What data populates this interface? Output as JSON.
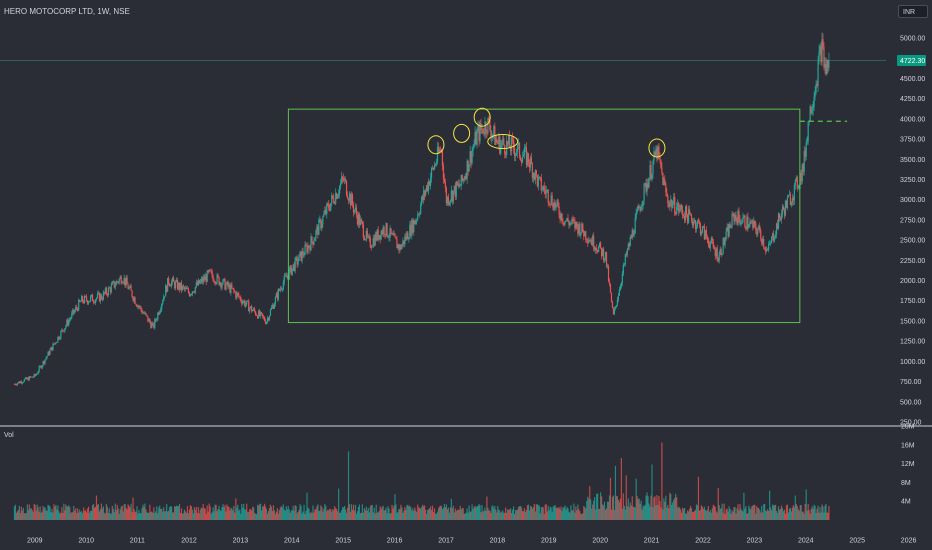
{
  "header": {
    "symbol_title": "HERO MOTOCORP LTD, 1W, NSE",
    "currency": "INR"
  },
  "volume_pane": {
    "label": "Vol"
  },
  "colors": {
    "bg": "#2a2c36",
    "up": "#26a69a",
    "down": "#ef5350",
    "box": "#5cc24e",
    "marker": "#f5e63c",
    "text": "#d1d4dc",
    "price_tag": "#089981"
  },
  "chart_data": [
    {
      "type": "candlestick",
      "title": "HERO MOTOCORP LTD, 1W, NSE",
      "x_ticks": [
        "2009",
        "2010",
        "2011",
        "2012",
        "2013",
        "2014",
        "2015",
        "2016",
        "2017",
        "2018",
        "2019",
        "2020",
        "2021",
        "2022",
        "2023",
        "2024",
        "2025",
        "2026"
      ],
      "y_ticks": [
        "250.00",
        "500.00",
        "750.00",
        "1000.00",
        "1250.00",
        "1500.00",
        "1750.00",
        "2000.00",
        "2250.00",
        "2500.00",
        "2750.00",
        "3000.00",
        "3250.00",
        "3500.00",
        "3750.00",
        "4000.00",
        "4250.00",
        "4500.00",
        "5000.00"
      ],
      "ylim": [
        250,
        5150
      ],
      "last_price": "4722.30",
      "price_path": [
        [
          2008.6,
          720
        ],
        [
          2009.0,
          820
        ],
        [
          2009.5,
          1350
        ],
        [
          2009.9,
          1750
        ],
        [
          2010.3,
          1800
        ],
        [
          2010.7,
          2050
        ],
        [
          2011.0,
          1700
        ],
        [
          2011.3,
          1420
        ],
        [
          2011.6,
          2000
        ],
        [
          2012.0,
          1850
        ],
        [
          2012.4,
          2080
        ],
        [
          2012.8,
          1900
        ],
        [
          2013.2,
          1650
        ],
        [
          2013.5,
          1500
        ],
        [
          2013.8,
          1950
        ],
        [
          2014.0,
          2150
        ],
        [
          2014.4,
          2500
        ],
        [
          2014.7,
          2900
        ],
        [
          2015.0,
          3250
        ],
        [
          2015.2,
          2900
        ],
        [
          2015.5,
          2450
        ],
        [
          2015.8,
          2650
        ],
        [
          2016.1,
          2400
        ],
        [
          2016.4,
          2750
        ],
        [
          2016.7,
          3300
        ],
        [
          2016.9,
          3650
        ],
        [
          2017.0,
          3000
        ],
        [
          2017.3,
          3200
        ],
        [
          2017.6,
          3800
        ],
        [
          2017.8,
          3950
        ],
        [
          2018.0,
          3700
        ],
        [
          2018.3,
          3650
        ],
        [
          2018.6,
          3500
        ],
        [
          2018.8,
          3200
        ],
        [
          2019.0,
          3050
        ],
        [
          2019.3,
          2750
        ],
        [
          2019.6,
          2650
        ],
        [
          2019.9,
          2450
        ],
        [
          2020.1,
          2300
        ],
        [
          2020.25,
          1550
        ],
        [
          2020.5,
          2300
        ],
        [
          2020.8,
          3000
        ],
        [
          2021.0,
          3400
        ],
        [
          2021.1,
          3600
        ],
        [
          2021.3,
          3000
        ],
        [
          2021.6,
          2850
        ],
        [
          2021.9,
          2700
        ],
        [
          2022.1,
          2500
        ],
        [
          2022.3,
          2300
        ],
        [
          2022.6,
          2800
        ],
        [
          2022.9,
          2700
        ],
        [
          2023.1,
          2600
        ],
        [
          2023.25,
          2350
        ],
        [
          2023.5,
          2800
        ],
        [
          2023.8,
          3150
        ],
        [
          2023.95,
          3400
        ],
        [
          2024.05,
          4000
        ],
        [
          2024.2,
          4500
        ],
        [
          2024.3,
          4900
        ],
        [
          2024.38,
          4600
        ],
        [
          2024.45,
          4722
        ]
      ],
      "annotations": {
        "range_box": {
          "x0": 2013.93,
          "x1": 2023.88,
          "y0": 1480,
          "y1": 4120
        },
        "breakout_dashes": {
          "x0": 2023.88,
          "x1": 2024.8,
          "y": 3970
        },
        "highlight_circles": [
          {
            "x": 2016.8,
            "y": 3680
          },
          {
            "x": 2017.3,
            "y": 3820
          },
          {
            "x": 2017.7,
            "y": 4020
          },
          {
            "x": 2018.1,
            "y": 3720
          },
          {
            "x": 2021.1,
            "y": 3640
          }
        ]
      }
    },
    {
      "type": "bar",
      "title": "Vol",
      "y_ticks": [
        "4M",
        "8M",
        "12M",
        "16M",
        "20M"
      ],
      "ylim": [
        0,
        20
      ],
      "typical_volume_M": 2.5,
      "spike_volume_M": [
        [
          2010.2,
          5.2
        ],
        [
          2010.9,
          4.8
        ],
        [
          2012.9,
          4.6
        ],
        [
          2014.3,
          5.8
        ],
        [
          2014.9,
          6.7
        ],
        [
          2015.1,
          14.6
        ],
        [
          2016.0,
          5.5
        ],
        [
          2017.1,
          4.5
        ],
        [
          2017.8,
          5.0
        ],
        [
          2019.8,
          7.2
        ],
        [
          2020.2,
          9.0
        ],
        [
          2020.3,
          11.5
        ],
        [
          2020.4,
          13.2
        ],
        [
          2020.5,
          9.5
        ],
        [
          2020.7,
          8.8
        ],
        [
          2021.0,
          11.8
        ],
        [
          2021.2,
          16.5
        ],
        [
          2021.9,
          9.2
        ],
        [
          2022.3,
          6.8
        ],
        [
          2022.8,
          5.8
        ],
        [
          2023.3,
          6.2
        ],
        [
          2023.8,
          5.2
        ],
        [
          2024.0,
          6.5
        ]
      ]
    }
  ]
}
